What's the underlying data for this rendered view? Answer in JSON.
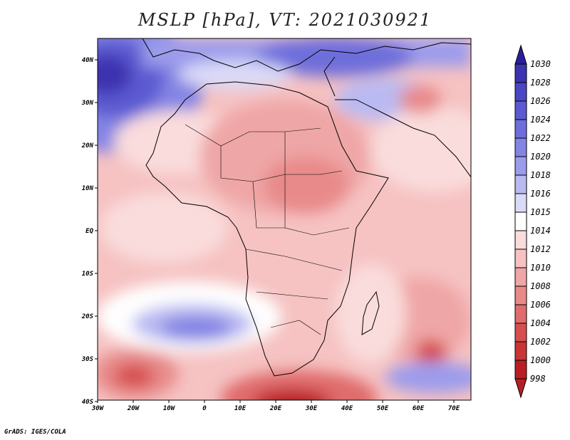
{
  "title": "MSLP [hPa], VT: 2021030921",
  "footer": "GrADS: IGES/COLA",
  "axes": {
    "lon_labels": [
      "30W",
      "20W",
      "10W",
      "0",
      "10E",
      "20E",
      "30E",
      "40E",
      "50E",
      "60E",
      "70E"
    ],
    "lat_labels": [
      "40N",
      "30N",
      "20N",
      "10N",
      "EQ",
      "10S",
      "20S",
      "30S",
      "40S"
    ]
  },
  "colorbar": {
    "levels": [
      "1030",
      "1028",
      "1026",
      "1024",
      "1022",
      "1020",
      "1018",
      "1016",
      "1015",
      "1014",
      "1012",
      "1010",
      "1008",
      "1006",
      "1004",
      "1002",
      "1000",
      "998"
    ],
    "colors": [
      "#2b1e9a",
      "#3c33b0",
      "#4b46c2",
      "#5c5ad0",
      "#6e6edb",
      "#8484e4",
      "#9c9cec",
      "#babaf2",
      "#dadaf8",
      "#ffffff",
      "#fadcdc",
      "#f6c2c2",
      "#efa6a6",
      "#e88a8a",
      "#e06c6c",
      "#d64e4e",
      "#c93434",
      "#b81f24"
    ]
  }
}
